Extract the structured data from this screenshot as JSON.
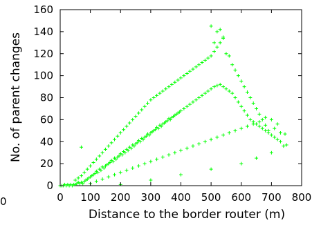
{
  "chart_data": {
    "type": "scatter",
    "title": "",
    "xlabel": "Distance to the border router (m)",
    "ylabel": "No. of parent changes",
    "xlim": [
      0,
      800
    ],
    "ylim": [
      0,
      160
    ],
    "x_ticks": [
      0,
      100,
      200,
      300,
      400,
      500,
      600,
      700,
      800
    ],
    "y_ticks": [
      0,
      20,
      40,
      60,
      80,
      100,
      120,
      140,
      160
    ],
    "stray_tick_label": "0",
    "grid": false,
    "legend": "none",
    "marker": "+",
    "point_color": "#00ff00",
    "series": [
      {
        "values": [
          [
            0,
            0
          ],
          [
            5,
            0
          ],
          [
            10,
            0
          ],
          [
            15,
            1
          ],
          [
            20,
            0
          ],
          [
            25,
            1
          ],
          [
            30,
            0
          ],
          [
            35,
            1
          ],
          [
            40,
            0
          ],
          [
            45,
            1
          ],
          [
            50,
            1
          ],
          [
            55,
            2
          ],
          [
            60,
            3
          ],
          [
            65,
            2
          ],
          [
            70,
            3
          ],
          [
            75,
            2
          ],
          [
            80,
            4
          ],
          [
            85,
            5
          ],
          [
            90,
            6
          ],
          [
            95,
            7
          ],
          [
            100,
            8
          ],
          [
            105,
            9
          ],
          [
            110,
            10
          ],
          [
            115,
            11
          ],
          [
            120,
            13
          ],
          [
            125,
            12
          ],
          [
            130,
            15
          ],
          [
            135,
            14
          ],
          [
            140,
            17
          ],
          [
            145,
            16
          ],
          [
            150,
            18
          ],
          [
            155,
            19
          ],
          [
            160,
            20
          ],
          [
            165,
            21
          ],
          [
            170,
            23
          ],
          [
            175,
            22
          ],
          [
            180,
            25
          ],
          [
            185,
            24
          ],
          [
            190,
            26
          ],
          [
            195,
            27
          ],
          [
            200,
            29
          ],
          [
            205,
            28
          ],
          [
            210,
            31
          ],
          [
            215,
            30
          ],
          [
            220,
            33
          ],
          [
            225,
            32
          ],
          [
            230,
            35
          ],
          [
            235,
            34
          ],
          [
            240,
            37
          ],
          [
            245,
            36
          ],
          [
            250,
            38
          ],
          [
            255,
            39
          ],
          [
            260,
            41
          ],
          [
            265,
            40
          ],
          [
            270,
            43
          ],
          [
            275,
            42
          ],
          [
            280,
            44
          ],
          [
            285,
            45
          ],
          [
            290,
            47
          ],
          [
            295,
            46
          ],
          [
            300,
            48
          ],
          [
            305,
            49
          ],
          [
            310,
            50
          ],
          [
            315,
            51
          ],
          [
            320,
            53
          ],
          [
            325,
            52
          ],
          [
            330,
            55
          ],
          [
            335,
            54
          ],
          [
            340,
            56
          ],
          [
            345,
            57
          ],
          [
            350,
            58
          ],
          [
            355,
            59
          ],
          [
            360,
            61
          ],
          [
            365,
            60
          ],
          [
            370,
            62
          ],
          [
            375,
            63
          ],
          [
            380,
            64
          ],
          [
            385,
            65
          ],
          [
            390,
            66
          ],
          [
            395,
            67
          ],
          [
            400,
            68
          ],
          [
            410,
            70
          ],
          [
            420,
            72
          ],
          [
            430,
            74
          ],
          [
            440,
            76
          ],
          [
            450,
            78
          ],
          [
            460,
            80
          ],
          [
            470,
            82
          ],
          [
            480,
            84
          ],
          [
            490,
            86
          ],
          [
            500,
            88
          ],
          [
            510,
            90
          ],
          [
            520,
            91
          ],
          [
            530,
            92
          ],
          [
            540,
            90
          ],
          [
            550,
            88
          ],
          [
            560,
            86
          ],
          [
            570,
            84
          ],
          [
            580,
            80
          ],
          [
            590,
            76
          ],
          [
            600,
            72
          ],
          [
            610,
            68
          ],
          [
            620,
            64
          ],
          [
            630,
            60
          ],
          [
            640,
            58
          ],
          [
            650,
            56
          ],
          [
            660,
            54
          ],
          [
            670,
            52
          ],
          [
            680,
            50
          ],
          [
            690,
            48
          ],
          [
            700,
            46
          ],
          [
            710,
            44
          ],
          [
            720,
            42
          ],
          [
            730,
            40
          ],
          [
            740,
            36
          ],
          [
            745,
            47
          ],
          [
            750,
            37
          ],
          [
            720,
            56
          ],
          [
            700,
            60
          ],
          [
            680,
            62
          ],
          [
            100,
            2
          ],
          [
            120,
            4
          ],
          [
            140,
            6
          ],
          [
            160,
            8
          ],
          [
            180,
            10
          ],
          [
            200,
            12
          ],
          [
            220,
            14
          ],
          [
            240,
            16
          ],
          [
            260,
            18
          ],
          [
            280,
            20
          ],
          [
            300,
            22
          ],
          [
            320,
            24
          ],
          [
            340,
            26
          ],
          [
            360,
            28
          ],
          [
            380,
            30
          ],
          [
            400,
            32
          ],
          [
            420,
            34
          ],
          [
            440,
            36
          ],
          [
            460,
            38
          ],
          [
            480,
            40
          ],
          [
            500,
            42
          ],
          [
            520,
            44
          ],
          [
            540,
            46
          ],
          [
            560,
            48
          ],
          [
            580,
            50
          ],
          [
            600,
            52
          ],
          [
            620,
            54
          ],
          [
            640,
            56
          ],
          [
            660,
            58
          ],
          [
            50,
            5
          ],
          [
            60,
            7
          ],
          [
            70,
            9
          ],
          [
            80,
            12
          ],
          [
            90,
            15
          ],
          [
            100,
            18
          ],
          [
            110,
            21
          ],
          [
            120,
            24
          ],
          [
            130,
            27
          ],
          [
            140,
            30
          ],
          [
            150,
            33
          ],
          [
            160,
            36
          ],
          [
            170,
            39
          ],
          [
            180,
            42
          ],
          [
            190,
            45
          ],
          [
            200,
            48
          ],
          [
            210,
            51
          ],
          [
            220,
            54
          ],
          [
            230,
            57
          ],
          [
            240,
            60
          ],
          [
            250,
            63
          ],
          [
            260,
            66
          ],
          [
            270,
            69
          ],
          [
            280,
            72
          ],
          [
            290,
            75
          ],
          [
            300,
            78
          ],
          [
            310,
            80
          ],
          [
            320,
            82
          ],
          [
            330,
            84
          ],
          [
            340,
            86
          ],
          [
            350,
            88
          ],
          [
            360,
            90
          ],
          [
            370,
            92
          ],
          [
            380,
            94
          ],
          [
            390,
            96
          ],
          [
            400,
            98
          ],
          [
            410,
            100
          ],
          [
            420,
            102
          ],
          [
            430,
            104
          ],
          [
            440,
            106
          ],
          [
            450,
            108
          ],
          [
            460,
            110
          ],
          [
            470,
            112
          ],
          [
            480,
            114
          ],
          [
            490,
            116
          ],
          [
            500,
            118
          ],
          [
            510,
            122
          ],
          [
            520,
            126
          ],
          [
            530,
            130
          ],
          [
            540,
            134
          ],
          [
            70,
            35
          ],
          [
            200,
            1
          ],
          [
            300,
            5
          ],
          [
            400,
            10
          ],
          [
            500,
            15
          ],
          [
            600,
            20
          ],
          [
            650,
            25
          ],
          [
            700,
            30
          ],
          [
            710,
            52
          ],
          [
            730,
            48
          ],
          [
            500,
            145
          ],
          [
            510,
            130
          ],
          [
            520,
            140
          ],
          [
            530,
            142
          ],
          [
            540,
            135
          ],
          [
            550,
            120
          ],
          [
            560,
            118
          ],
          [
            570,
            110
          ],
          [
            580,
            105
          ],
          [
            590,
            100
          ],
          [
            600,
            95
          ],
          [
            610,
            90
          ],
          [
            620,
            85
          ],
          [
            630,
            80
          ],
          [
            640,
            75
          ],
          [
            650,
            70
          ],
          [
            660,
            65
          ],
          [
            670,
            60
          ],
          [
            680,
            55
          ],
          [
            690,
            50
          ]
        ]
      }
    ]
  }
}
